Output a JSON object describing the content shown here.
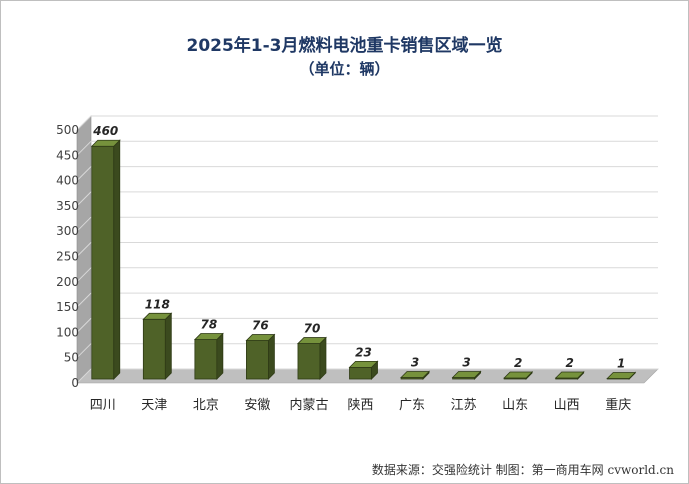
{
  "chart_data": {
    "type": "bar",
    "title": "2025年1-3月燃料电池重卡销售区域一览",
    "subtitle": "（单位：辆）",
    "categories": [
      "四川",
      "天津",
      "北京",
      "安徽",
      "内蒙古",
      "陕西",
      "广东",
      "江苏",
      "山东",
      "山西",
      "重庆"
    ],
    "values": [
      460,
      118,
      78,
      76,
      70,
      23,
      3,
      3,
      2,
      2,
      1
    ],
    "ylim": [
      0,
      500
    ],
    "yticks": [
      0,
      50,
      100,
      150,
      200,
      250,
      300,
      350,
      400,
      450,
      500
    ],
    "grid": true,
    "data_labels": true,
    "legend": "none",
    "bar_color": "#4f6228",
    "bar_side_color": "#3b4a1e",
    "bar_top_color": "#76923c"
  },
  "source_note": "数据来源：交强险统计    制图：第一商用车网 cvworld.cn"
}
